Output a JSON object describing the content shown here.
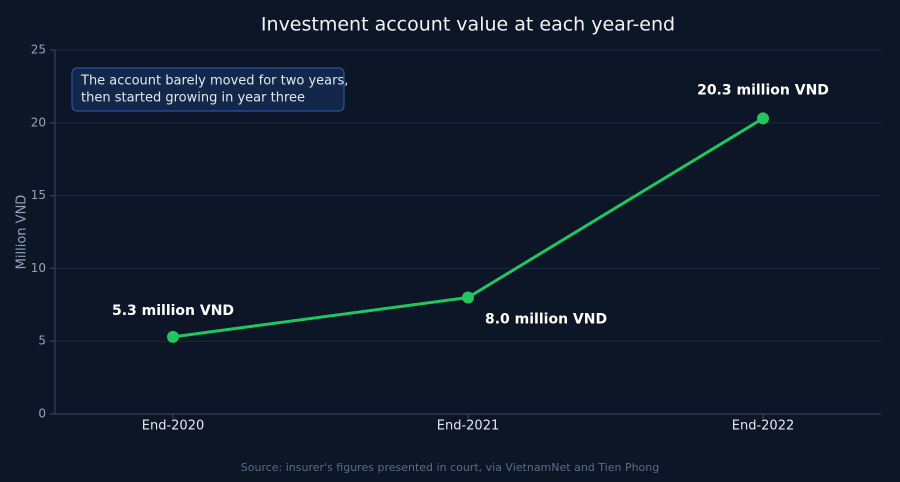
{
  "chart_data": {
    "type": "line",
    "title": "Investment account value at each year-end",
    "ylabel": "Million VND",
    "annotation": [
      "The account barely moved for two years,",
      "then started growing in year three"
    ],
    "source": "Source: insurer's figures presented in court, via VietnamNet and Tien Phong",
    "categories": [
      "End-2020",
      "End-2021",
      "End-2022"
    ],
    "series": [
      {
        "color": "#22c55e",
        "values": [
          5.3,
          8.0,
          20.3
        ],
        "value_labels": [
          "5.3 million VND",
          "8.0 million VND",
          "20.3 million VND"
        ]
      }
    ],
    "ylim": [
      0,
      25
    ],
    "yticks": [
      0,
      5,
      10,
      15,
      20,
      25
    ],
    "grid": true
  }
}
